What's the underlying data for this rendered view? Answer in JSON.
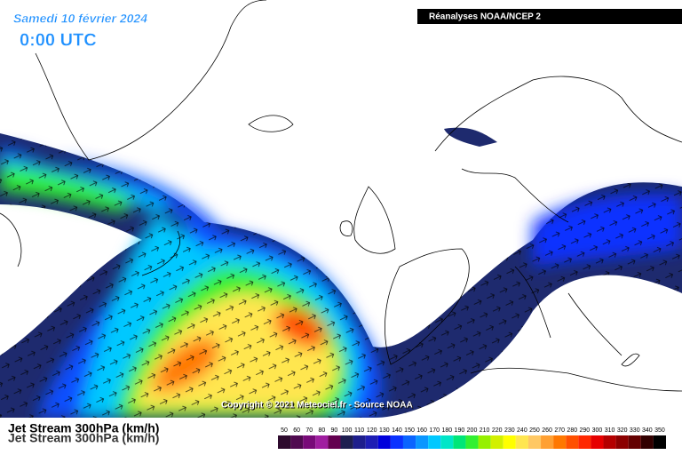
{
  "header": {
    "date": "Samedi 10 février 2024",
    "time": "0:00 UTC",
    "source_box": "Réanalyses NOAA/NCEP 2"
  },
  "copyright": "Copyright © 2021 Meteociel.fr - Source NOAA",
  "field_label": "Jet Stream 300hPa (km/h)",
  "legend": {
    "items": [
      {
        "value": 50,
        "color": "#2d0a2d"
      },
      {
        "value": 60,
        "color": "#500a50"
      },
      {
        "value": 70,
        "color": "#780a78"
      },
      {
        "value": 80,
        "color": "#a01ea0"
      },
      {
        "value": 90,
        "color": "#640050"
      },
      {
        "value": 100,
        "color": "#1e1e50"
      },
      {
        "value": 110,
        "color": "#1e1e8c"
      },
      {
        "value": 120,
        "color": "#1e1eb4"
      },
      {
        "value": 130,
        "color": "#0000dc"
      },
      {
        "value": 140,
        "color": "#0a32ff"
      },
      {
        "value": 150,
        "color": "#0a64ff"
      },
      {
        "value": 160,
        "color": "#0a96ff"
      },
      {
        "value": 170,
        "color": "#00c8ff"
      },
      {
        "value": 180,
        "color": "#00e6c8"
      },
      {
        "value": 190,
        "color": "#00e678"
      },
      {
        "value": 200,
        "color": "#32f032"
      },
      {
        "value": 210,
        "color": "#96f000"
      },
      {
        "value": 220,
        "color": "#d2f000"
      },
      {
        "value": 230,
        "color": "#ffff00"
      },
      {
        "value": 240,
        "color": "#ffe650"
      },
      {
        "value": 250,
        "color": "#ffc864"
      },
      {
        "value": 260,
        "color": "#ffa032"
      },
      {
        "value": 270,
        "color": "#ff7800"
      },
      {
        "value": 280,
        "color": "#ff5000"
      },
      {
        "value": 290,
        "color": "#ff2800"
      },
      {
        "value": 300,
        "color": "#e60000"
      },
      {
        "value": 310,
        "color": "#b40000"
      },
      {
        "value": 320,
        "color": "#8c0000"
      },
      {
        "value": 330,
        "color": "#640000"
      },
      {
        "value": 340,
        "color": "#320000"
      },
      {
        "value": 350,
        "color": "#000000"
      }
    ]
  }
}
